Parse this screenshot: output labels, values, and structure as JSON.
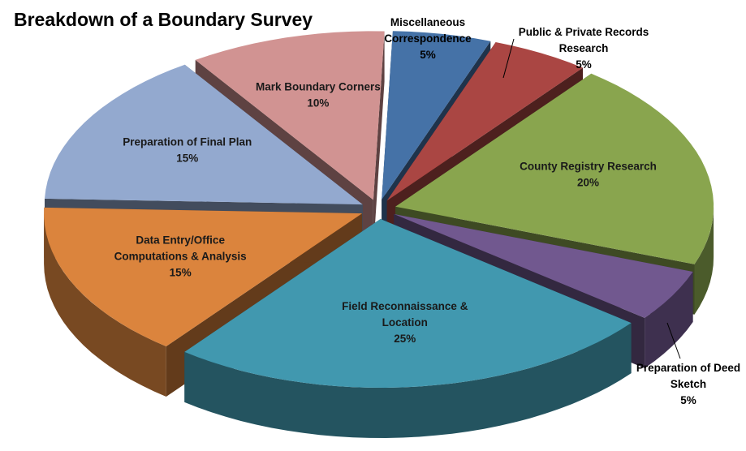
{
  "chart_data": {
    "type": "pie",
    "title": "Breakdown of a Boundary Survey",
    "slices": [
      {
        "label": [
          "Miscellaneous",
          "Correspondence"
        ],
        "value": 5,
        "percent_label": "5%",
        "color": "#4572A7"
      },
      {
        "label": [
          "Public & Private Records",
          "Research"
        ],
        "value": 5,
        "percent_label": "5%",
        "color": "#AA4643"
      },
      {
        "label": [
          "County Registry Research"
        ],
        "value": 20,
        "percent_label": "20%",
        "color": "#89A54E"
      },
      {
        "label": [
          "Preparation of Deed",
          "Sketch"
        ],
        "value": 5,
        "percent_label": "5%",
        "color": "#71588F"
      },
      {
        "label": [
          "Field Reconnaissance &",
          "Location"
        ],
        "value": 25,
        "percent_label": "25%",
        "color": "#4198AF"
      },
      {
        "label": [
          "Data Entry/Office",
          "Computations & Analysis"
        ],
        "value": 15,
        "percent_label": "15%",
        "color": "#DB843D"
      },
      {
        "label": [
          "Preparation of Final Plan"
        ],
        "value": 15,
        "percent_label": "15%",
        "color": "#93A9CF"
      },
      {
        "label": [
          "Mark Boundary Corners"
        ],
        "value": 10,
        "percent_label": "10%",
        "color": "#D19392"
      }
    ],
    "legend": "none",
    "style": "3d-exploded"
  }
}
